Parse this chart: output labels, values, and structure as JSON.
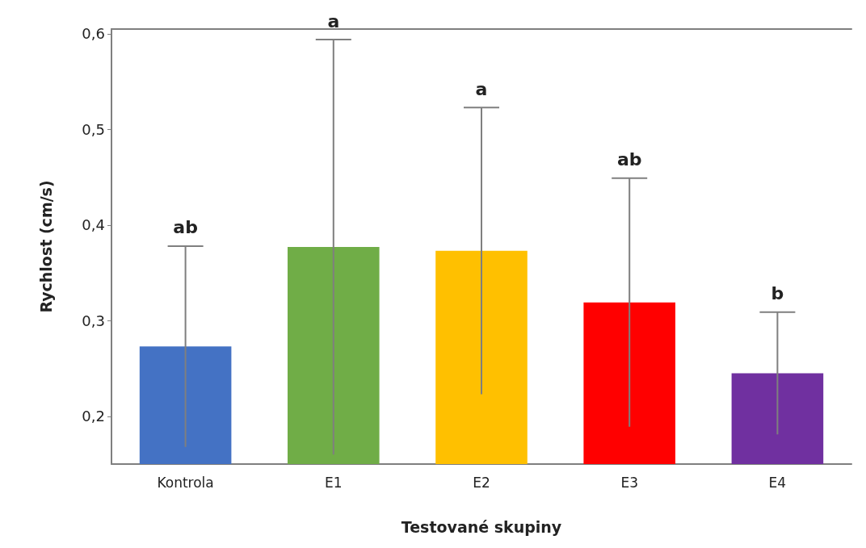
{
  "chart_data": {
    "type": "bar",
    "xlabel": "Testované skupiny",
    "ylabel": "Rychlost (cm/s)",
    "categories": [
      "Kontrola",
      "E1",
      "E2",
      "E3",
      "E4"
    ],
    "values": [
      0.273,
      0.377,
      0.373,
      0.319,
      0.245
    ],
    "errors": [
      0.105,
      0.217,
      0.15,
      0.13,
      0.064
    ],
    "colors": [
      "#4472c4",
      "#70ad47",
      "#ffc000",
      "#ff0000",
      "#7030a0"
    ],
    "ylim": [
      0.15,
      0.605
    ],
    "yticks": [
      {
        "value": 0.2,
        "label": "0,2"
      },
      {
        "value": 0.3,
        "label": "0,3"
      },
      {
        "value": 0.4,
        "label": "0,4"
      },
      {
        "value": 0.5,
        "label": "0,5"
      },
      {
        "value": 0.6,
        "label": "0,6"
      }
    ],
    "annotations": [
      {
        "text": "ab",
        "x": "Kontrola",
        "y": 0.378
      },
      {
        "text": "a",
        "x": "E1",
        "y": 0.594
      },
      {
        "text": "a",
        "x": "E2",
        "y": 0.523
      },
      {
        "text": "ab",
        "x": "E3",
        "y": 0.449
      },
      {
        "text": "b",
        "x": "E4",
        "y": 0.309
      }
    ],
    "grid": false
  }
}
